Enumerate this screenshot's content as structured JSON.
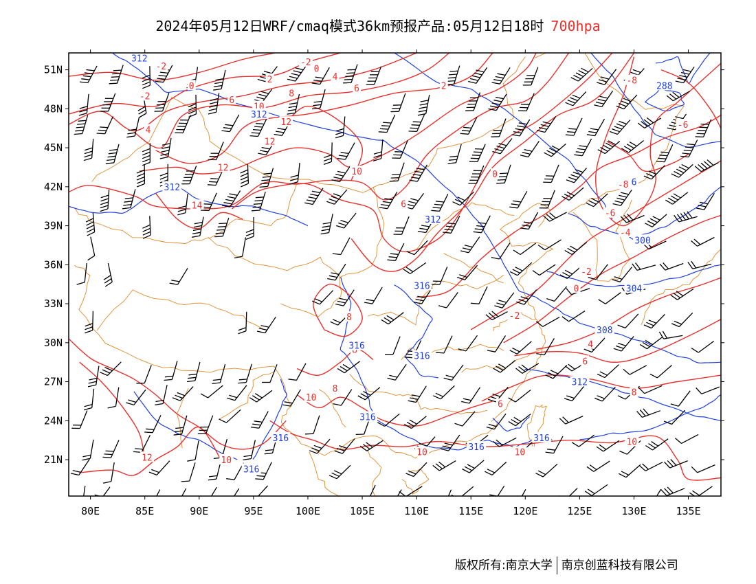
{
  "title": {
    "main": "2024年05月12日WRF/cmaq模式36km预报产品:05月12日18时",
    "level": "700hpa",
    "level_color": "#e8302c"
  },
  "axes": {
    "lat_labels": [
      "51N",
      "48N",
      "45N",
      "42N",
      "39N",
      "36N",
      "33N",
      "30N",
      "27N",
      "24N",
      "21N"
    ],
    "lon_labels": [
      "80E",
      "85E",
      "90E",
      "95E",
      "100E",
      "105E",
      "110E",
      "115E",
      "120E",
      "125E",
      "130E",
      "135E"
    ]
  },
  "layers": {
    "temperature_color": "#e8302c",
    "height_color": "#1f3fe0",
    "border_color": "#e08a2c",
    "wind_barb_color": "#000000"
  },
  "temperature_labels": [
    {
      "text": "-2",
      "lon": 86.5,
      "lat": 51.3
    },
    {
      "text": "0",
      "lon": 89.3,
      "lat": 49.8
    },
    {
      "text": "-2",
      "lon": 85.0,
      "lat": 49.0
    },
    {
      "text": "-2",
      "lon": 99.8,
      "lat": 51.6
    },
    {
      "text": "0",
      "lon": 100.8,
      "lat": 51.1
    },
    {
      "text": "2",
      "lon": 96.5,
      "lat": 50.3
    },
    {
      "text": "4",
      "lon": 102.5,
      "lat": 50.5
    },
    {
      "text": "6",
      "lon": 93.0,
      "lat": 48.7
    },
    {
      "text": "8",
      "lon": 98.5,
      "lat": 49.2
    },
    {
      "text": "6",
      "lon": 104.5,
      "lat": 49.6
    },
    {
      "text": "2",
      "lon": 112.5,
      "lat": 49.8
    },
    {
      "text": "-8",
      "lon": 129.8,
      "lat": 50.2
    },
    {
      "text": "-6",
      "lon": 134.5,
      "lat": 46.8
    },
    {
      "text": "10",
      "lon": 95.5,
      "lat": 48.2
    },
    {
      "text": "12",
      "lon": 98.0,
      "lat": 47.0
    },
    {
      "text": "4",
      "lon": 85.3,
      "lat": 46.4
    },
    {
      "text": "12",
      "lon": 96.5,
      "lat": 45.5
    },
    {
      "text": "10",
      "lon": 104.5,
      "lat": 43.2
    },
    {
      "text": "12",
      "lon": 92.2,
      "lat": 43.5
    },
    {
      "text": "14",
      "lon": 89.8,
      "lat": 40.6
    },
    {
      "text": "6",
      "lon": 108.8,
      "lat": 40.7
    },
    {
      "text": "0",
      "lon": 117.2,
      "lat": 43.0
    },
    {
      "text": "-6",
      "lon": 127.8,
      "lat": 40.0
    },
    {
      "text": "-8",
      "lon": 129.0,
      "lat": 42.2
    },
    {
      "text": "-4",
      "lon": 129.2,
      "lat": 38.5
    },
    {
      "text": "-2",
      "lon": 125.6,
      "lat": 35.5
    },
    {
      "text": "0",
      "lon": 124.7,
      "lat": 34.2
    },
    {
      "text": "-2",
      "lon": 119.0,
      "lat": 32.1
    },
    {
      "text": "8",
      "lon": 103.8,
      "lat": 32.0
    },
    {
      "text": "8",
      "lon": 104.3,
      "lat": 29.5
    },
    {
      "text": "4",
      "lon": 126.0,
      "lat": 29.9
    },
    {
      "text": "6",
      "lon": 125.5,
      "lat": 28.6
    },
    {
      "text": "8",
      "lon": 102.5,
      "lat": 26.5
    },
    {
      "text": "10",
      "lon": 100.3,
      "lat": 25.8
    },
    {
      "text": "8",
      "lon": 130.0,
      "lat": 26.2
    },
    {
      "text": "6",
      "lon": 117.7,
      "lat": 25.3
    },
    {
      "text": "10",
      "lon": 110.5,
      "lat": 21.6
    },
    {
      "text": "10",
      "lon": 119.5,
      "lat": 21.6
    },
    {
      "text": "10",
      "lon": 129.8,
      "lat": 22.4
    },
    {
      "text": "12",
      "lon": 85.2,
      "lat": 21.2
    },
    {
      "text": "10",
      "lon": 92.5,
      "lat": 21.0
    }
  ],
  "height_labels": [
    {
      "text": "312",
      "lon": 84.5,
      "lat": 51.9
    },
    {
      "text": "312",
      "lon": 95.5,
      "lat": 47.6
    },
    {
      "text": "288",
      "lon": 132.8,
      "lat": 49.8
    },
    {
      "text": "312",
      "lon": 87.5,
      "lat": 42.0
    },
    {
      "text": "312",
      "lon": 111.5,
      "lat": 39.5
    },
    {
      "text": "6",
      "lon": 130.0,
      "lat": 42.4
    },
    {
      "text": "300",
      "lon": 130.8,
      "lat": 37.9
    },
    {
      "text": "304",
      "lon": 130.0,
      "lat": 34.2
    },
    {
      "text": "316",
      "lon": 110.5,
      "lat": 34.4
    },
    {
      "text": "308",
      "lon": 127.3,
      "lat": 31.0
    },
    {
      "text": "316",
      "lon": 104.5,
      "lat": 29.8
    },
    {
      "text": "316",
      "lon": 110.5,
      "lat": 29.0
    },
    {
      "text": "312",
      "lon": 125.0,
      "lat": 27.0
    },
    {
      "text": "316",
      "lon": 105.5,
      "lat": 24.3
    },
    {
      "text": "316",
      "lon": 97.5,
      "lat": 22.7
    },
    {
      "text": "316",
      "lon": 115.5,
      "lat": 22.0
    },
    {
      "text": "316",
      "lon": 121.5,
      "lat": 22.7
    },
    {
      "text": "316",
      "lon": 94.8,
      "lat": 20.3
    }
  ],
  "footer": {
    "copyright": "版权所有:南京大学",
    "company": "南京创蓝科技有限公司"
  }
}
